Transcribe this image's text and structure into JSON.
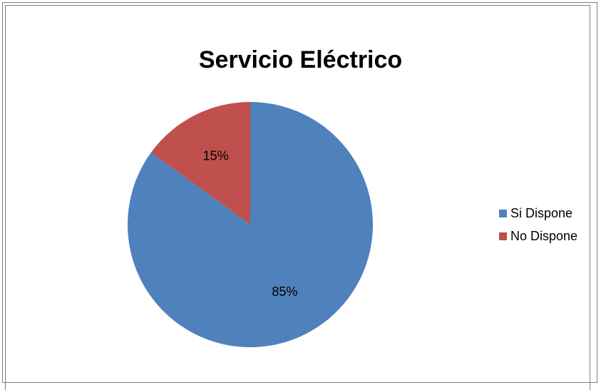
{
  "chart_data": {
    "type": "pie",
    "title": "Servicio Eléctrico",
    "categories": [
      "Si Dispone",
      "No Dispone"
    ],
    "values": [
      85,
      15
    ],
    "labels": [
      "85%",
      "15%"
    ],
    "colors": [
      "#4f81bd",
      "#c0504d"
    ],
    "legend": {
      "placement": "right",
      "items": [
        {
          "label": "Si Dispone",
          "color": "#4f81bd"
        },
        {
          "label": "No Dispone",
          "color": "#c0504d"
        }
      ]
    }
  }
}
